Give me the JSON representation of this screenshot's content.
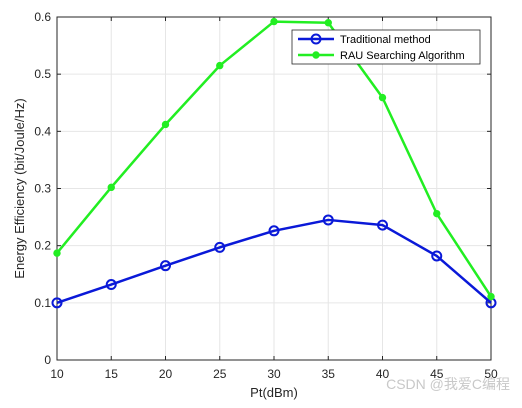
{
  "chart_data": {
    "type": "line",
    "title": "",
    "xlabel": "Pt(dBm)",
    "ylabel": "Energy Efficiency (bit/Joule/Hz)",
    "x": [
      10,
      15,
      20,
      25,
      30,
      35,
      40,
      45,
      50
    ],
    "xlim": [
      10,
      50
    ],
    "ylim": [
      0,
      0.6
    ],
    "xticks": [
      "10",
      "15",
      "20",
      "25",
      "30",
      "35",
      "40",
      "45",
      "50"
    ],
    "yticks": [
      "0",
      "0.1",
      "0.2",
      "0.3",
      "0.4",
      "0.5",
      "0.6"
    ],
    "grid": true,
    "legend_position": "top-right",
    "series": [
      {
        "name": "Traditional method",
        "color": "#0a19d8",
        "marker": "open-circle",
        "values": [
          0.1,
          0.132,
          0.165,
          0.197,
          0.226,
          0.245,
          0.236,
          0.182,
          0.1
        ]
      },
      {
        "name": "RAU Searching Algorithm",
        "color": "#22ee22",
        "marker": "filled-circle",
        "values": [
          0.187,
          0.302,
          0.412,
          0.515,
          0.592,
          0.59,
          0.459,
          0.256,
          0.111
        ]
      }
    ]
  },
  "watermark": "CSDN @我爱C编程"
}
